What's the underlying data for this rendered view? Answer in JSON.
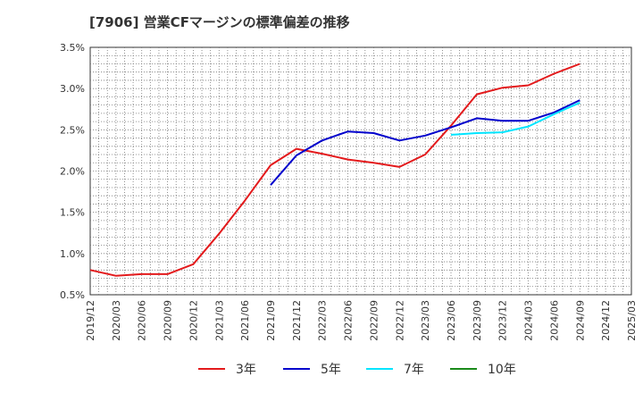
{
  "chart_data": {
    "type": "line",
    "title": "[7906]  営業CFマージンの標準偏差の推移",
    "x": [
      "2019/12",
      "2020/03",
      "2020/06",
      "2020/09",
      "2020/12",
      "2021/03",
      "2021/06",
      "2021/09",
      "2021/12",
      "2022/03",
      "2022/06",
      "2022/09",
      "2022/12",
      "2023/03",
      "2023/06",
      "2023/09",
      "2023/12",
      "2024/03",
      "2024/06",
      "2024/09",
      "2024/12",
      "2025/03"
    ],
    "y_ticks": [
      "0.5%",
      "1.0%",
      "1.5%",
      "2.0%",
      "2.5%",
      "3.0%",
      "3.5%"
    ],
    "ylim": [
      0.5,
      3.5
    ],
    "grid": true,
    "legend_position": "bottom",
    "series": [
      {
        "name": "3年",
        "color": "#e31a1c",
        "values": [
          0.8,
          0.73,
          0.75,
          0.75,
          0.87,
          1.24,
          1.64,
          2.07,
          2.27,
          2.21,
          2.14,
          2.1,
          2.05,
          2.2,
          2.55,
          2.93,
          3.01,
          3.04,
          3.18,
          3.3,
          null,
          null
        ]
      },
      {
        "name": "5年",
        "color": "#0000cc",
        "values": [
          null,
          null,
          null,
          null,
          null,
          null,
          null,
          1.83,
          2.19,
          2.37,
          2.48,
          2.46,
          2.37,
          2.43,
          2.53,
          2.64,
          2.61,
          2.61,
          2.71,
          2.86,
          null,
          null
        ]
      },
      {
        "name": "7年",
        "color": "#00e5ff",
        "values": [
          null,
          null,
          null,
          null,
          null,
          null,
          null,
          null,
          null,
          null,
          null,
          null,
          null,
          null,
          2.44,
          2.46,
          2.47,
          2.54,
          2.69,
          2.83,
          null,
          null
        ]
      },
      {
        "name": "10年",
        "color": "#1a8a1a",
        "values": [
          null,
          null,
          null,
          null,
          null,
          null,
          null,
          null,
          null,
          null,
          null,
          null,
          null,
          null,
          null,
          null,
          null,
          null,
          null,
          null,
          null,
          null
        ]
      }
    ]
  }
}
